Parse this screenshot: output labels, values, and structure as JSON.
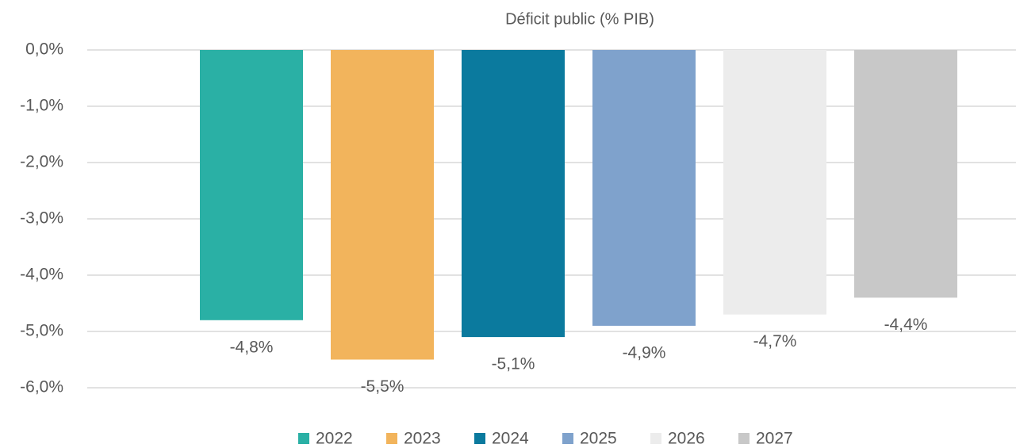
{
  "chart_data": {
    "type": "bar",
    "title": "Déficit public (% PIB)",
    "categories": [
      null
    ],
    "series": [
      {
        "name": "2022",
        "color": "#2ab0a5",
        "values": [
          -4.8
        ],
        "value_labels": [
          "-4,8%"
        ]
      },
      {
        "name": "2023",
        "color": "#f2b45c",
        "values": [
          -5.5
        ],
        "value_labels": [
          "-5,5%"
        ]
      },
      {
        "name": "2024",
        "color": "#0b7a9e",
        "values": [
          -5.1
        ],
        "value_labels": [
          "-5,1%"
        ]
      },
      {
        "name": "2025",
        "color": "#7fa2cc",
        "values": [
          -4.9
        ],
        "value_labels": [
          "-4,9%"
        ]
      },
      {
        "name": "2026",
        "color": "#ececec",
        "values": [
          -4.7
        ],
        "value_labels": [
          "-4,7%"
        ]
      },
      {
        "name": "2027",
        "color": "#c8c8c8",
        "values": [
          -4.4
        ],
        "value_labels": [
          "-4,4%"
        ]
      }
    ],
    "ylim": [
      -6,
      0
    ],
    "yticks": [
      {
        "value": 0,
        "label": "0,0%"
      },
      {
        "value": -1,
        "label": "-1,0%"
      },
      {
        "value": -2,
        "label": "-2,0%"
      },
      {
        "value": -3,
        "label": "-3,0%"
      },
      {
        "value": -4,
        "label": "-4,0%"
      },
      {
        "value": -5,
        "label": "-5,0%"
      },
      {
        "value": -6,
        "label": "-6,0%"
      }
    ],
    "grid": true,
    "legend": "bottom"
  }
}
